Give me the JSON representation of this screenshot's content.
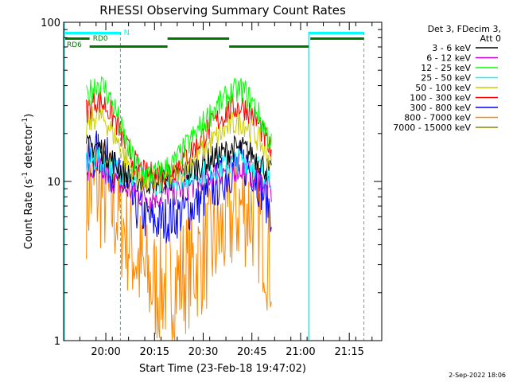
{
  "chart_data": {
    "type": "line",
    "title": "RHESSI Observing Summary Count Rates",
    "xlabel": "Start Time (23-Feb-18 19:47:02)",
    "ylabel_main": "Count Rate (s",
    "ylabel_sup1": "-1",
    "ylabel_mid": " detector",
    "ylabel_sup2": "-1",
    "ylabel_end": ")",
    "y_scale": "log",
    "ylim": [
      1,
      100
    ],
    "xlim_minutes": [
      0,
      98
    ],
    "x_ticks": [
      {
        "min": 13,
        "label": "20:00"
      },
      {
        "min": 28,
        "label": "20:15"
      },
      {
        "min": 43,
        "label": "20:30"
      },
      {
        "min": 58,
        "label": "20:45"
      },
      {
        "min": 73,
        "label": "21:00"
      },
      {
        "min": 88,
        "label": "21:15"
      }
    ],
    "y_ticks": [
      {
        "value": 1,
        "label": "1"
      },
      {
        "value": 10,
        "label": "10"
      },
      {
        "value": 100,
        "label": "100"
      }
    ],
    "legend_header": [
      "Det 3, FDecim 3,",
      "Att 0"
    ],
    "legend_placement": "right, outside",
    "series": [
      {
        "name": "3 - 6 keV",
        "color": "#000000",
        "values": [
          16,
          17,
          15,
          13,
          11,
          10.5,
          10,
          10,
          10.5,
          12,
          14,
          16,
          16,
          15,
          13,
          11
        ]
      },
      {
        "name": "6 - 12 keV",
        "color": "#cc00cc",
        "values": [
          11,
          12,
          11,
          10,
          9,
          8.5,
          8,
          8,
          8.5,
          9.5,
          11,
          12,
          12,
          11,
          10,
          8.5
        ]
      },
      {
        "name": "12 - 25 keV",
        "color": "#00ff00",
        "values": [
          33,
          42,
          38,
          28,
          18,
          13,
          11,
          11,
          13,
          19,
          28,
          36,
          38,
          32,
          24,
          17
        ]
      },
      {
        "name": "25 - 50 keV",
        "color": "#00ffff",
        "values": [
          13,
          14,
          13,
          12,
          11,
          10.5,
          10,
          10,
          10.5,
          11,
          12,
          13,
          14,
          13,
          12,
          11
        ]
      },
      {
        "name": "50 - 100 keV",
        "color": "#cccc00",
        "values": [
          22,
          26,
          24,
          19,
          14,
          11,
          10,
          10,
          11,
          14,
          18,
          23,
          24,
          21,
          17,
          13
        ]
      },
      {
        "name": "100 - 300 keV",
        "color": "#ff0000",
        "values": [
          28,
          33,
          30,
          24,
          17,
          13,
          11,
          11,
          12,
          16,
          23,
          29,
          30,
          27,
          21,
          15
        ]
      },
      {
        "name": "300 - 800 keV",
        "color": "#0000ff",
        "values": [
          13,
          15,
          14,
          11,
          9,
          7,
          6,
          5.5,
          6,
          7,
          9,
          12,
          13,
          12,
          9,
          6.5
        ]
      },
      {
        "name": "800 - 7000 keV",
        "color": "#ff8800",
        "values": [
          8,
          9,
          8,
          6.5,
          5,
          3.5,
          2.5,
          2.2,
          2.3,
          3,
          4,
          6,
          7,
          6.5,
          5,
          3
        ]
      },
      {
        "name": "7000 - 15000 keV",
        "color": "#888800",
        "values": []
      }
    ],
    "series_x_minutes": [
      7,
      10,
      13,
      16,
      19,
      22,
      25,
      28,
      34,
      40,
      46,
      52,
      55,
      58,
      61,
      64
    ],
    "status_bars": {
      "n_label": "N",
      "rd0_label": "RD0",
      "rd6_label": "RD6",
      "n_color": "#00ffff",
      "rd_color": "#007700"
    },
    "vertical_markers_color": "#00cccc"
  },
  "footer_date": "2-Sep-2022 18:06"
}
